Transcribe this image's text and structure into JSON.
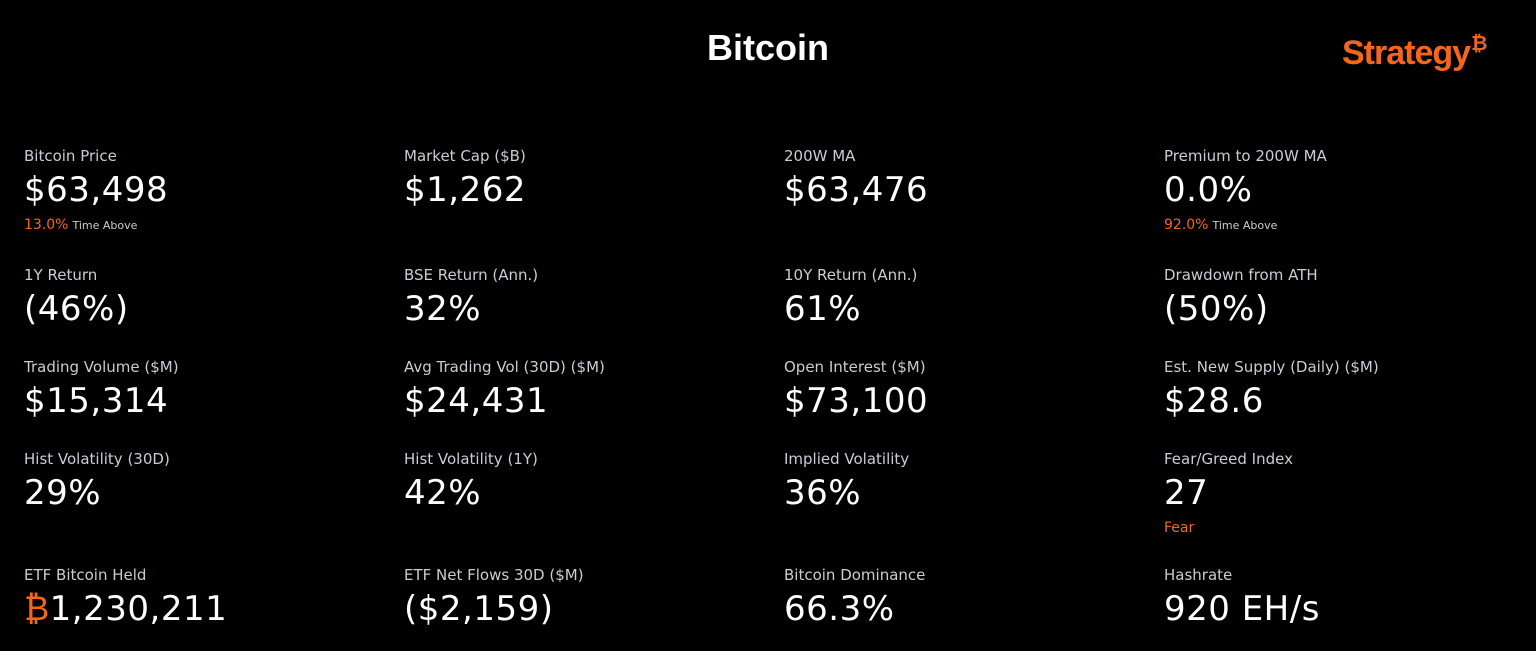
{
  "header": {
    "title": "Bitcoin",
    "logo": {
      "name": "Strategy",
      "symbol": "₿"
    }
  },
  "metrics": [
    [
      {
        "label": "Bitcoin Price",
        "value": "$63,498",
        "note": {
          "value": "13.0%",
          "text": "Time Above"
        }
      },
      {
        "label": "Market Cap ($B)",
        "value": "$1,262"
      },
      {
        "label": "200W MA",
        "value": "$63,476"
      },
      {
        "label": "Premium to 200W MA",
        "value": "0.0%",
        "note": {
          "value": "92.0%",
          "text": "Time Above"
        }
      }
    ],
    [
      {
        "label": "1Y Return",
        "value": "(46%)"
      },
      {
        "label": "BSE Return (Ann.)",
        "value": "32%"
      },
      {
        "label": "10Y Return (Ann.)",
        "value": "61%"
      },
      {
        "label": "Drawdown from ATH",
        "value": "(50%)"
      }
    ],
    [
      {
        "label": "Trading Volume ($M)",
        "value": "$15,314"
      },
      {
        "label": "Avg Trading Vol (30D) ($M)",
        "value": "$24,431"
      },
      {
        "label": "Open Interest ($M)",
        "value": "$73,100"
      },
      {
        "label": "Est. New Supply (Daily) ($M)",
        "value": "$28.6"
      }
    ],
    [
      {
        "label": "Hist Volatility (30D)",
        "value": "29%"
      },
      {
        "label": "Hist Volatility (1Y)",
        "value": "42%"
      },
      {
        "label": "Implied Volatility",
        "value": "36%"
      },
      {
        "label": "Fear/Greed Index",
        "value": "27",
        "note": {
          "value": "Fear"
        }
      }
    ],
    [
      {
        "label": "ETF Bitcoin Held",
        "prefix": "₿",
        "value": "1,230,211"
      },
      {
        "label": "ETF Net Flows 30D ($M)",
        "value": "($2,159)"
      },
      {
        "label": "Bitcoin Dominance",
        "value": "66.3%"
      },
      {
        "label": "Hashrate",
        "value": "920 EH/s"
      }
    ]
  ]
}
